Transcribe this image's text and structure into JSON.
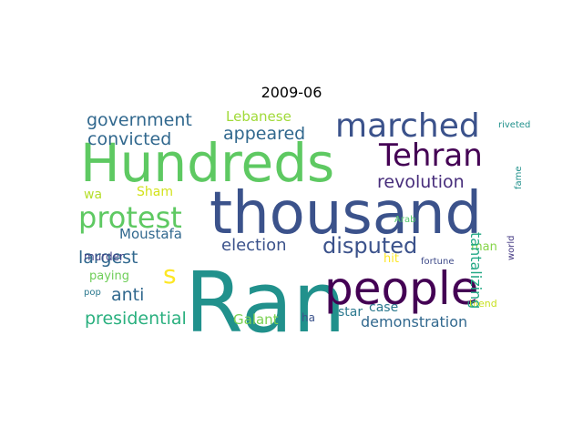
{
  "title": "2009-06",
  "words": [
    {
      "text": "Ran",
      "color": "#21918c"
    },
    {
      "text": "thousand",
      "color": "#3b528b"
    },
    {
      "text": "Hundreds",
      "color": "#5ec962"
    },
    {
      "text": "people",
      "color": "#440154"
    },
    {
      "text": "marched",
      "color": "#3b528b"
    },
    {
      "text": "Tehran",
      "color": "#440154"
    },
    {
      "text": "protest",
      "color": "#5ec962"
    },
    {
      "text": "disputed",
      "color": "#3b528b"
    },
    {
      "text": "revolution",
      "color": "#472d7b"
    },
    {
      "text": "government",
      "color": "#31688e"
    },
    {
      "text": "convicted",
      "color": "#31688e"
    },
    {
      "text": "appeared",
      "color": "#31688e"
    },
    {
      "text": "election",
      "color": "#3b528b"
    },
    {
      "text": "Lebanese",
      "color": "#a0da39"
    },
    {
      "text": "largest",
      "color": "#31688e"
    },
    {
      "text": "Moustafa",
      "color": "#31688e"
    },
    {
      "text": "s",
      "color": "#fde725"
    },
    {
      "text": "anti",
      "color": "#31688e"
    },
    {
      "text": "presidential",
      "color": "#2ab07f"
    },
    {
      "text": "Galant",
      "color": "#7ad151"
    },
    {
      "text": "demonstration",
      "color": "#31688e"
    },
    {
      "text": "wa",
      "color": "#b5de2b"
    },
    {
      "text": "Sham",
      "color": "#d2e21b"
    },
    {
      "text": "paying",
      "color": "#6ece58"
    },
    {
      "text": "murder",
      "color": "#414487"
    },
    {
      "text": "man",
      "color": "#86d549"
    },
    {
      "text": "hit",
      "color": "#fde725"
    },
    {
      "text": "case",
      "color": "#2a788e"
    },
    {
      "text": "star",
      "color": "#2a788e"
    },
    {
      "text": "ha",
      "color": "#3b528b"
    },
    {
      "text": "pop",
      "color": "#2a788e"
    },
    {
      "text": "Arab",
      "color": "#52c569"
    },
    {
      "text": "fortune",
      "color": "#3e4a89"
    },
    {
      "text": "blend",
      "color": "#c8e020"
    },
    {
      "text": "riveted",
      "color": "#21918c"
    },
    {
      "text": "tantalizing",
      "color": "#22a884"
    },
    {
      "text": "world",
      "color": "#443983"
    },
    {
      "text": "fame",
      "color": "#21918c"
    }
  ]
}
